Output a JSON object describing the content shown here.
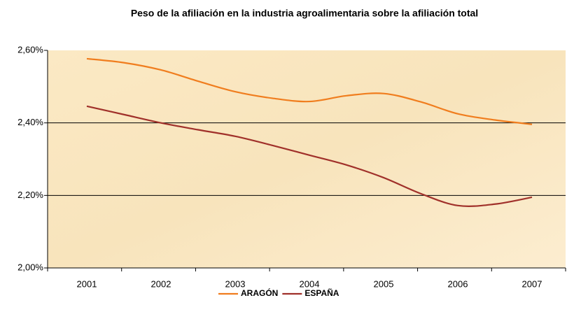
{
  "chart_data": {
    "type": "line",
    "title": "Peso de la afiliación en la industria agroalimentaria sobre la afiliación total",
    "categories": [
      "2001",
      null,
      "2002",
      null,
      "2003",
      null,
      "2004",
      null,
      "2005",
      null,
      "2006",
      null,
      "2007"
    ],
    "series": [
      {
        "name": "ARAGÓN",
        "color": "#f07d1e",
        "values": [
          2.577,
          2.566,
          2.546,
          2.515,
          2.486,
          2.468,
          2.459,
          2.475,
          2.481,
          2.458,
          2.425,
          2.408,
          2.396
        ]
      },
      {
        "name": "ESPAÑA",
        "color": "#a0302a",
        "values": [
          2.446,
          2.423,
          2.4,
          2.381,
          2.363,
          2.338,
          2.311,
          2.284,
          2.249,
          2.205,
          2.172,
          2.176,
          2.195
        ]
      }
    ],
    "ylim": [
      2.0,
      2.6
    ],
    "yticks": [
      {
        "value": 2.0,
        "label": "2,00%"
      },
      {
        "value": 2.2,
        "label": "2,20%"
      },
      {
        "value": 2.4,
        "label": "2,40%"
      },
      {
        "value": 2.6,
        "label": "2,60%"
      }
    ],
    "grid": true,
    "legend": "bottom"
  }
}
